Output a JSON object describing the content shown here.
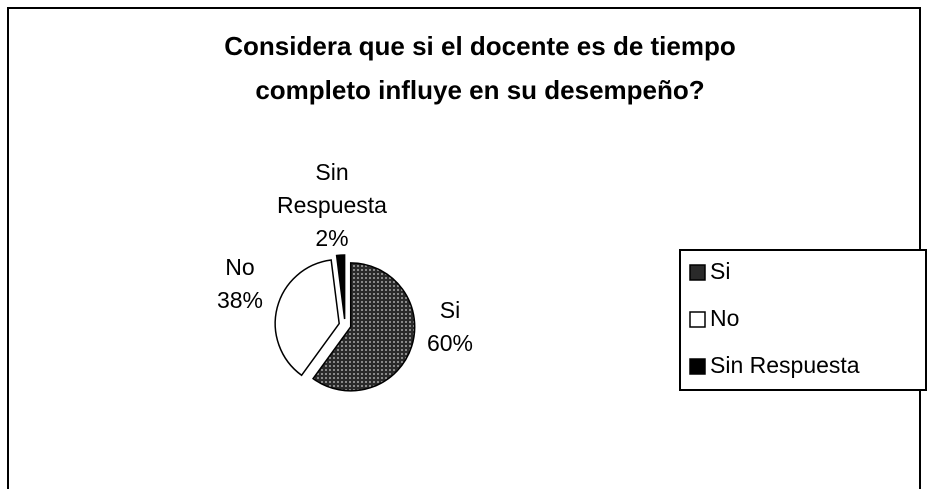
{
  "chart_data": {
    "type": "pie",
    "title": [
      "Considera que si el docente es de tiempo",
      "completo influye en su desempeño?"
    ],
    "categories": [
      "Si",
      "No",
      "Sin Respuesta"
    ],
    "values": [
      60,
      38,
      2
    ],
    "value_labels": [
      "60%",
      "38%",
      "2%"
    ],
    "colors": [
      "#2a2a2a",
      "#ffffff",
      "#000000"
    ],
    "legend": "right"
  }
}
